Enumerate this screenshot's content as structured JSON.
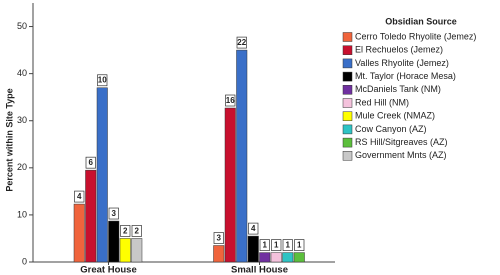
{
  "chart_data": {
    "type": "bar",
    "y_label": "Percent within Site Type",
    "categories": [
      "Great House",
      "Small House"
    ],
    "ylim": [
      0,
      55
    ],
    "yticks": [
      0,
      10,
      20,
      30,
      40,
      50
    ],
    "legend_title": "Obsidian Source",
    "series": [
      {
        "name": "Cerro Toledo Rhyolite (Jemez)",
        "color": "#f0643c",
        "values": [
          12.3,
          3.5
        ],
        "counts": [
          4,
          3
        ]
      },
      {
        "name": "El Rechuelos (Jemez)",
        "color": "#c8102e",
        "values": [
          19.5,
          32.7
        ],
        "counts": [
          6,
          16
        ]
      },
      {
        "name": "Valles Rhyolite (Jemez)",
        "color": "#3a6fc8",
        "values": [
          37,
          45
        ],
        "counts": [
          10,
          22
        ]
      },
      {
        "name": "Mt. Taylor (Horace Mesa)",
        "color": "#000000",
        "values": [
          8.7,
          5.5
        ],
        "counts": [
          3,
          4
        ]
      },
      {
        "name": "McDaniels Tank (NM)",
        "color": "#7030a0",
        "values": [
          null,
          2
        ],
        "counts": [
          null,
          1
        ]
      },
      {
        "name": "Red Hill (NM)",
        "color": "#f4c2dc",
        "values": [
          null,
          2
        ],
        "counts": [
          null,
          1
        ]
      },
      {
        "name": "Mule Creek (NMAZ)",
        "color": "#ffff00",
        "values": [
          5,
          null
        ],
        "counts": [
          2,
          null
        ]
      },
      {
        "name": "Cow Canyon (AZ)",
        "color": "#2ec4c4",
        "values": [
          null,
          2
        ],
        "counts": [
          null,
          1
        ]
      },
      {
        "name": "RS Hill/Sitgreaves (AZ)",
        "color": "#5cbf3c",
        "values": [
          null,
          2
        ],
        "counts": [
          null,
          1
        ]
      },
      {
        "name": "Government Mnts (AZ)",
        "color": "#c8c8c8",
        "values": [
          5,
          null
        ],
        "counts": [
          2,
          null
        ]
      }
    ]
  }
}
